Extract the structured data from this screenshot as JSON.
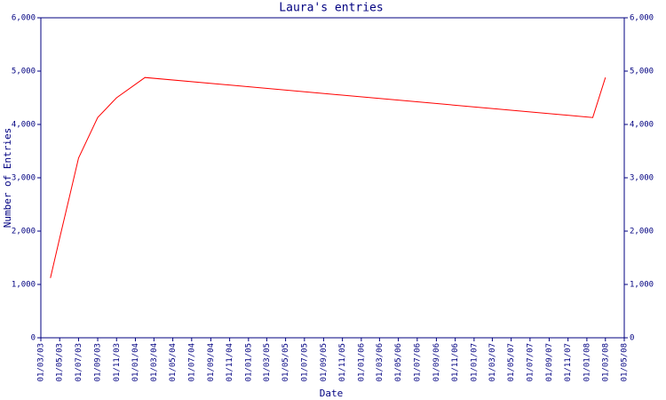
{
  "chart_data": {
    "type": "line",
    "title": "Laura's entries",
    "xlabel": "Date",
    "ylabel": "Number of Entries",
    "x": [
      "2003-04-01",
      "2003-05-01",
      "2003-06-01",
      "2003-07-01",
      "2003-09-01",
      "2003-11-01",
      "2004-02-01",
      "2008-01-20",
      "2008-03-01"
    ],
    "series": [
      {
        "name": "Laura",
        "color": "#ff0000",
        "values": [
          1120,
          1870,
          2630,
          3370,
          4130,
          4500,
          4880,
          4130,
          4880
        ]
      }
    ],
    "ylim": [
      0,
      6000
    ],
    "yticks": [
      0,
      {
        "value": 1000,
        "label": "1,000"
      },
      {
        "value": 2000,
        "label": "2,000"
      },
      {
        "value": 3000,
        "label": "3,000"
      },
      {
        "value": 4000,
        "label": "4,000"
      },
      {
        "value": 5000,
        "label": "5,000"
      },
      {
        "value": 6000,
        "label": "6,000"
      }
    ],
    "xlim": [
      "2003-03-01",
      "2008-05-01"
    ],
    "xticks": [
      {
        "value": "2003-03-01",
        "label": "01/03/03"
      },
      {
        "value": "2003-05-01",
        "label": "01/05/03"
      },
      {
        "value": "2003-07-01",
        "label": "01/07/03"
      },
      {
        "value": "2003-09-01",
        "label": "01/09/03"
      },
      {
        "value": "2003-11-01",
        "label": "01/11/03"
      },
      {
        "value": "2004-01-01",
        "label": "01/01/04"
      },
      {
        "value": "2004-03-01",
        "label": "01/03/04"
      },
      {
        "value": "2004-05-01",
        "label": "01/05/04"
      },
      {
        "value": "2004-07-01",
        "label": "01/07/04"
      },
      {
        "value": "2004-09-01",
        "label": "01/09/04"
      },
      {
        "value": "2004-11-01",
        "label": "01/11/04"
      },
      {
        "value": "2005-01-01",
        "label": "01/01/05"
      },
      {
        "value": "2005-03-01",
        "label": "01/03/05"
      },
      {
        "value": "2005-05-01",
        "label": "01/05/05"
      },
      {
        "value": "2005-07-01",
        "label": "01/07/05"
      },
      {
        "value": "2005-09-01",
        "label": "01/09/05"
      },
      {
        "value": "2005-11-01",
        "label": "01/11/05"
      },
      {
        "value": "2006-01-01",
        "label": "01/01/06"
      },
      {
        "value": "2006-03-01",
        "label": "01/03/06"
      },
      {
        "value": "2006-05-01",
        "label": "01/05/06"
      },
      {
        "value": "2006-07-01",
        "label": "01/07/06"
      },
      {
        "value": "2006-09-01",
        "label": "01/09/06"
      },
      {
        "value": "2006-11-01",
        "label": "01/11/06"
      },
      {
        "value": "2007-01-01",
        "label": "01/01/07"
      },
      {
        "value": "2007-03-01",
        "label": "01/03/07"
      },
      {
        "value": "2007-05-01",
        "label": "01/05/07"
      },
      {
        "value": "2007-07-01",
        "label": "01/07/07"
      },
      {
        "value": "2007-09-01",
        "label": "01/09/07"
      },
      {
        "value": "2007-11-01",
        "label": "01/11/07"
      },
      {
        "value": "2008-01-01",
        "label": "01/01/08"
      },
      {
        "value": "2008-03-01",
        "label": "01/03/08"
      },
      {
        "value": "2008-05-01",
        "label": "01/05/08"
      }
    ],
    "axis_color": "#000080"
  }
}
